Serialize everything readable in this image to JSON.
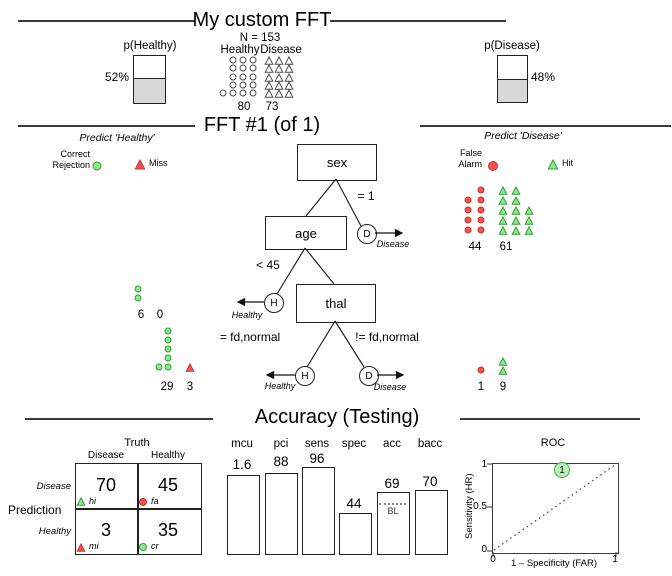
{
  "colors": {
    "green_fill": "#8FE88F",
    "green_stroke": "#2FA02F",
    "red_fill": "#EE5350",
    "red_stroke": "#C43431",
    "neutral_stroke": "#4A4A4A",
    "bar_gray": "#D8D8D8",
    "roc_point_fill": "#BDF0BD"
  },
  "header": {
    "title": "My custom FFT"
  },
  "population": {
    "n": "N = 153",
    "healthy_col": "Healthy",
    "disease_col": "Disease",
    "healthy_count": "80",
    "disease_count": "73",
    "p_healthy_title": "p(Healthy)",
    "p_healthy_pct": "52%",
    "p_disease_title": "p(Disease)",
    "p_disease_pct": "48%"
  },
  "tree": {
    "title": "FFT #1 (of 1)",
    "predict_healthy": "Predict 'Healthy'",
    "predict_disease": "Predict 'Disease'",
    "correct": "Correct",
    "rejection": "Rejection",
    "miss": "Miss",
    "false_word": "False",
    "alarm": "Alarm",
    "hit": "Hit",
    "node_sex": "sex",
    "node_age": "age",
    "node_thal": "thal",
    "lbl_sex_right": "= 1",
    "lbl_age_left": "< 45",
    "lbl_thal_left": "= fd,normal",
    "lbl_thal_right": "!= fd,normal",
    "letter_h": "H",
    "letter_d": "D",
    "healthy_word": "Healthy",
    "disease_word": "Disease",
    "counts": {
      "d1a": "44",
      "d1b": "61",
      "h1a": "6",
      "h1b": "0",
      "h2a": "29",
      "h2b": "3",
      "d2a": "1",
      "d2b": "9"
    }
  },
  "accuracy": {
    "title": "Accuracy (Testing)",
    "confusion": {
      "truth": "Truth",
      "prediction": "Prediction",
      "col_disease": "Disease",
      "col_healthy": "Healthy",
      "row_disease": "Disease",
      "row_healthy": "Healthy",
      "hi_val": "70",
      "hi_tag": "hi",
      "fa_val": "45",
      "fa_tag": "fa",
      "mi_val": "3",
      "mi_tag": "mi",
      "cr_val": "35",
      "cr_tag": "cr"
    },
    "bars": [
      {
        "label": "mcu",
        "value": "1.6"
      },
      {
        "label": "pci",
        "value": "88"
      },
      {
        "label": "sens",
        "value": "96"
      },
      {
        "label": "spec",
        "value": "44"
      },
      {
        "label": "acc",
        "value": "69"
      },
      {
        "label": "bacc",
        "value": "70"
      }
    ],
    "bl": "BL",
    "roc": {
      "title": "ROC",
      "ylabel": "Sensitivity (HR)",
      "xlabel": "1 – Specificity (FAR)",
      "ytick_top": "1",
      "ytick_mid": "0.5",
      "ytick_bot": "0",
      "xtick_left": "0",
      "xtick_right": "1",
      "point_label": "1"
    }
  },
  "chart_data": [
    {
      "type": "bar",
      "categories": [
        "mcu",
        "pci",
        "sens",
        "spec",
        "acc",
        "bacc"
      ],
      "values": [
        1.6,
        88,
        96,
        44,
        69,
        70
      ],
      "title": "Accuracy (Testing)",
      "xlabel": "",
      "ylabel": "",
      "notes": "acc bar contains dotted BL baseline marker"
    },
    {
      "type": "scatter",
      "title": "ROC",
      "xlabel": "1 – Specificity (FAR)",
      "ylabel": "Sensitivity (HR)",
      "xlim": [
        0,
        1
      ],
      "ylim": [
        0,
        1
      ],
      "points": [
        {
          "x": 0.56,
          "y": 0.96,
          "label": "1"
        }
      ],
      "diagonal": "dotted"
    },
    {
      "type": "table",
      "title": "Confusion matrix (Prediction x Truth)",
      "columns": [
        "Disease",
        "Healthy"
      ],
      "rows": [
        "Disease",
        "Healthy"
      ],
      "values": [
        [
          70,
          45
        ],
        [
          3,
          35
        ]
      ],
      "cell_tags": [
        [
          "hi",
          "fa"
        ],
        [
          "mi",
          "cr"
        ]
      ]
    },
    {
      "type": "table",
      "title": "Population N = 153",
      "columns": [
        "Healthy",
        "Disease"
      ],
      "values": [
        [
          80,
          73
        ]
      ],
      "tree_exit_counts": {
        "sex=1 -> Disease": [
          44,
          61
        ],
        "age<45 -> Healthy": [
          6,
          0
        ],
        "thal=fd,normal -> Healthy": [
          29,
          3
        ],
        "thal!=fd,normal -> Disease": [
          1,
          9
        ]
      },
      "baserates": {
        "p_healthy": 0.52,
        "p_disease": 0.48
      }
    }
  ],
  "icon_grids": {
    "population-healthy": {
      "icon": "healthy-case-icon",
      "shape": "circle",
      "size": 3,
      "fill": "#FFFFFF",
      "stroke": "#4A4A4A",
      "points": [
        [
          233,
          60
        ],
        [
          243,
          60
        ],
        [
          253,
          60
        ],
        [
          233,
          68
        ],
        [
          243,
          68
        ],
        [
          253,
          68
        ],
        [
          233,
          77
        ],
        [
          243,
          77
        ],
        [
          253,
          77
        ],
        [
          233,
          85
        ],
        [
          243,
          85
        ],
        [
          253,
          85
        ],
        [
          223,
          93
        ],
        [
          233,
          93
        ],
        [
          243,
          93
        ],
        [
          253,
          93
        ]
      ]
    },
    "population-disease": {
      "icon": "disease-case-icon",
      "shape": "triangle",
      "size": 4,
      "fill": "#FFFFFF",
      "stroke": "#4A4A4A",
      "points": [
        [
          269,
          61
        ],
        [
          279,
          61
        ],
        [
          289,
          61
        ],
        [
          269,
          69
        ],
        [
          279,
          69
        ],
        [
          289,
          69
        ],
        [
          269,
          78
        ],
        [
          279,
          78
        ],
        [
          289,
          78
        ],
        [
          269,
          86
        ],
        [
          279,
          86
        ],
        [
          289,
          86
        ],
        [
          269,
          94
        ],
        [
          279,
          94
        ],
        [
          289,
          94
        ]
      ]
    },
    "legend-correct-rejection": {
      "icon": "correct-rejection-icon",
      "shape": "circle",
      "size": 4,
      "fill": "#8FE88F",
      "stroke": "#2FA02F",
      "points": [
        [
          97,
          166
        ]
      ]
    },
    "legend-miss": {
      "icon": "miss-icon",
      "shape": "triangle",
      "size": 5,
      "fill": "#EE5350",
      "stroke": "#C43431",
      "points": [
        [
          140,
          165
        ]
      ]
    },
    "legend-false-alarm": {
      "icon": "false-alarm-icon",
      "shape": "circle",
      "size": 4.5,
      "fill": "#EE5350",
      "stroke": "#C43431",
      "points": [
        [
          493,
          166
        ]
      ]
    },
    "legend-hit": {
      "icon": "hit-icon",
      "shape": "triangle",
      "size": 5,
      "fill": "#8FE88F",
      "stroke": "#2FA02F",
      "points": [
        [
          553,
          165
        ]
      ]
    },
    "exit-sex-false-alarms": {
      "icon": "false-alarm-icon",
      "shape": "circle",
      "size": 3,
      "fill": "#EE5350",
      "stroke": "#C43431",
      "points": [
        [
          481,
          190
        ],
        [
          468,
          200
        ],
        [
          481,
          200
        ],
        [
          468,
          210
        ],
        [
          481,
          210
        ],
        [
          468,
          220
        ],
        [
          481,
          220
        ],
        [
          468,
          230
        ],
        [
          481,
          230
        ]
      ]
    },
    "exit-sex-hits": {
      "icon": "hit-icon",
      "shape": "triangle",
      "size": 4,
      "fill": "#8FE88F",
      "stroke": "#2FA02F",
      "points": [
        [
          503,
          191
        ],
        [
          516,
          191
        ],
        [
          503,
          201
        ],
        [
          516,
          201
        ],
        [
          503,
          211
        ],
        [
          516,
          211
        ],
        [
          529,
          211
        ],
        [
          503,
          221
        ],
        [
          516,
          221
        ],
        [
          529,
          221
        ],
        [
          503,
          231
        ],
        [
          516,
          231
        ],
        [
          529,
          231
        ]
      ]
    },
    "exit-age-correct-rejections": {
      "icon": "correct-rejection-icon",
      "shape": "circle",
      "size": 3,
      "fill": "#8FE88F",
      "stroke": "#2FA02F",
      "points": [
        [
          138,
          289
        ],
        [
          138,
          298
        ]
      ]
    },
    "exit-thal-h-correct-rejections": {
      "icon": "correct-rejection-icon",
      "shape": "circle",
      "size": 3,
      "fill": "#8FE88F",
      "stroke": "#2FA02F",
      "points": [
        [
          168,
          331
        ],
        [
          168,
          340
        ],
        [
          168,
          349
        ],
        [
          168,
          358
        ],
        [
          168,
          367
        ],
        [
          159,
          367
        ]
      ]
    },
    "exit-thal-h-misses": {
      "icon": "miss-icon",
      "shape": "triangle",
      "size": 4,
      "fill": "#EE5350",
      "stroke": "#C43431",
      "points": [
        [
          190,
          368
        ]
      ]
    },
    "exit-thal-d-false-alarms": {
      "icon": "false-alarm-icon",
      "shape": "circle",
      "size": 3,
      "fill": "#EE5350",
      "stroke": "#C43431",
      "points": [
        [
          481,
          370
        ]
      ]
    },
    "exit-thal-d-hits": {
      "icon": "hit-icon",
      "shape": "triangle",
      "size": 4,
      "fill": "#8FE88F",
      "stroke": "#2FA02F",
      "points": [
        [
          503,
          362
        ],
        [
          503,
          371
        ]
      ]
    },
    "cm-hit": {
      "icon": "hit-icon",
      "shape": "triangle",
      "size": 4,
      "fill": "#8FE88F",
      "stroke": "#2FA02F",
      "points": [
        [
          81,
          502
        ]
      ]
    },
    "cm-false-alarm": {
      "icon": "false-alarm-icon",
      "shape": "circle",
      "size": 3.5,
      "fill": "#EE5350",
      "stroke": "#C43431",
      "points": [
        [
          143,
          502
        ]
      ]
    },
    "cm-miss": {
      "icon": "miss-icon",
      "shape": "triangle",
      "size": 4,
      "fill": "#EE5350",
      "stroke": "#C43431",
      "points": [
        [
          81,
          548
        ]
      ]
    },
    "cm-correct-rejection": {
      "icon": "correct-rejection-icon",
      "shape": "circle",
      "size": 3.5,
      "fill": "#8FE88F",
      "stroke": "#2FA02F",
      "points": [
        [
          143,
          547
        ]
      ]
    }
  }
}
